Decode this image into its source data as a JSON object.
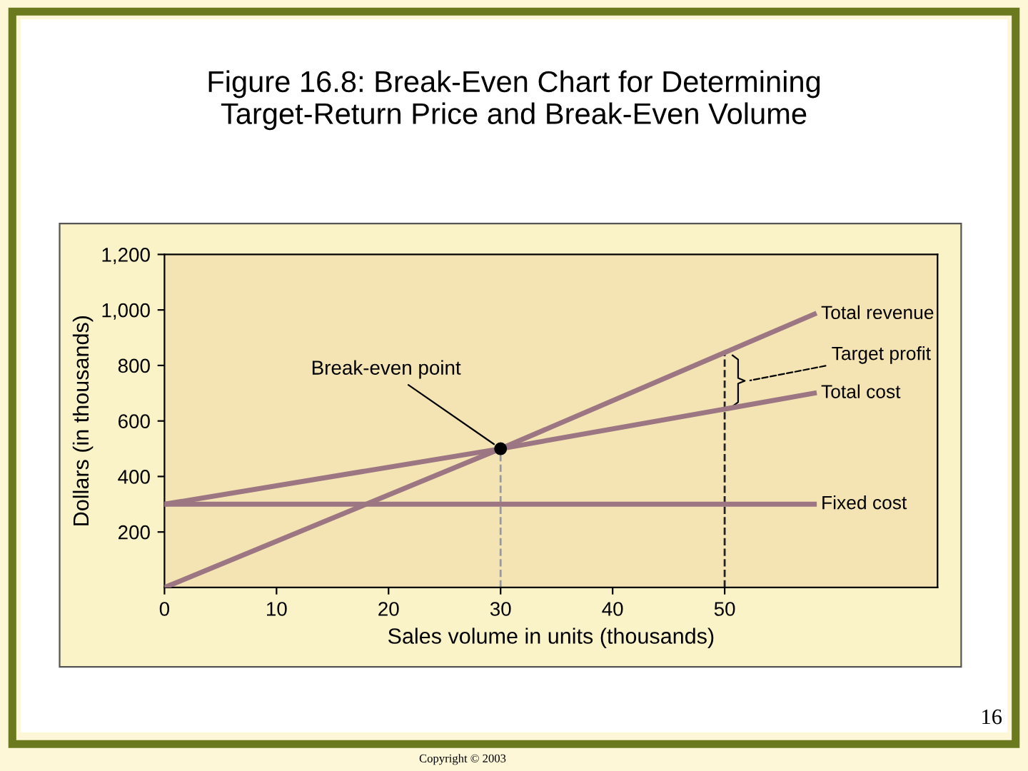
{
  "chart_data": {
    "type": "line",
    "title": "Figure 16.8: Break-Even Chart for Determining\nTarget-Return Price and Break-Even Volume",
    "xlabel": "Sales volume in units (thousands)",
    "ylabel": "Dollars (in thousands)",
    "series": [
      {
        "name": "Total revenue",
        "color": "#9c7682",
        "x": [
          0,
          30,
          58
        ],
        "values": [
          0,
          500,
          985
        ]
      },
      {
        "name": "Total cost",
        "color": "#9c7682",
        "x": [
          0,
          30,
          58
        ],
        "values": [
          300,
          500,
          700
        ]
      },
      {
        "name": "Fixed cost",
        "color": "#9c7682",
        "x": [
          0,
          58
        ],
        "values": [
          300,
          300
        ]
      },
      {
        "type": "scatter",
        "marker": "circle",
        "color": "#000000",
        "x": [
          30
        ],
        "values": [
          500
        ]
      }
    ],
    "xlim": [
      0,
      69
    ],
    "ylim": [
      0,
      1200
    ],
    "xticks": [
      0,
      10,
      20,
      30,
      40,
      50
    ],
    "yticks": [
      {
        "value": 200,
        "label": "200"
      },
      {
        "value": 400,
        "label": "400"
      },
      {
        "value": 600,
        "label": "600"
      },
      {
        "value": 800,
        "label": "800"
      },
      {
        "value": 1000,
        "label": "1,000"
      },
      {
        "value": 1200,
        "label": "1,200"
      }
    ],
    "ref_lines": [
      {
        "axis": "x",
        "value": 30,
        "color": "#999999",
        "line_style": "dashed"
      },
      {
        "axis": "x",
        "value": 50,
        "color": "#222222",
        "line_style": "dashed"
      }
    ],
    "annotations": [
      {
        "text": "Break-even point",
        "x": 30,
        "y": 500
      },
      "Target profit",
      "16",
      "Copyright © 2003"
    ],
    "grid": false,
    "legend": false,
    "line_style": "solid"
  }
}
